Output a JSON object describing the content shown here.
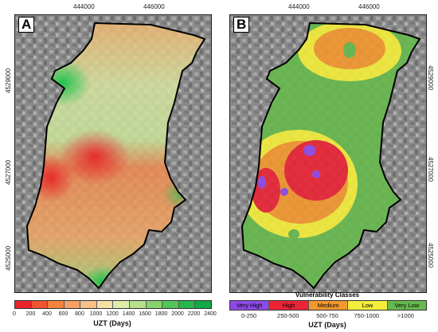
{
  "panel_a": {
    "label": "A",
    "x_ticks": [
      "444000",
      "446000"
    ],
    "y_ticks": [
      "4529000",
      "4527000",
      "4525000"
    ],
    "legend": {
      "colors": [
        "#e8252a",
        "#ef5530",
        "#f3833d",
        "#f5a064",
        "#f6c088",
        "#f5e1a6",
        "#dcecab",
        "#b6e08a",
        "#87d26c",
        "#52c458",
        "#27b84d",
        "#12a844"
      ],
      "ticks": [
        "0",
        "200",
        "400",
        "600",
        "800",
        "1000",
        "1200",
        "1400",
        "1600",
        "1800",
        "2000",
        "2200",
        "2400"
      ],
      "title": "UZT (Days)"
    }
  },
  "panel_b": {
    "label": "B",
    "x_ticks": [
      "444000",
      "446000"
    ],
    "y_ticks": [
      "4529000",
      "4527000",
      "4525000"
    ],
    "legend": {
      "title": "Vulnerability Classes",
      "classes": [
        {
          "name": "Very High",
          "range": "0-250",
          "color": "#8e49e6"
        },
        {
          "name": "High",
          "range": "250-500",
          "color": "#ea2436"
        },
        {
          "name": "Medium",
          "range": "500-750",
          "color": "#f3972f"
        },
        {
          "name": "Low",
          "range": "750-1000",
          "color": "#f3ee3a"
        },
        {
          "name": "Very Low",
          "range": ">1000",
          "color": "#66b94e"
        }
      ],
      "axis_title": "UZT (Days)"
    }
  }
}
